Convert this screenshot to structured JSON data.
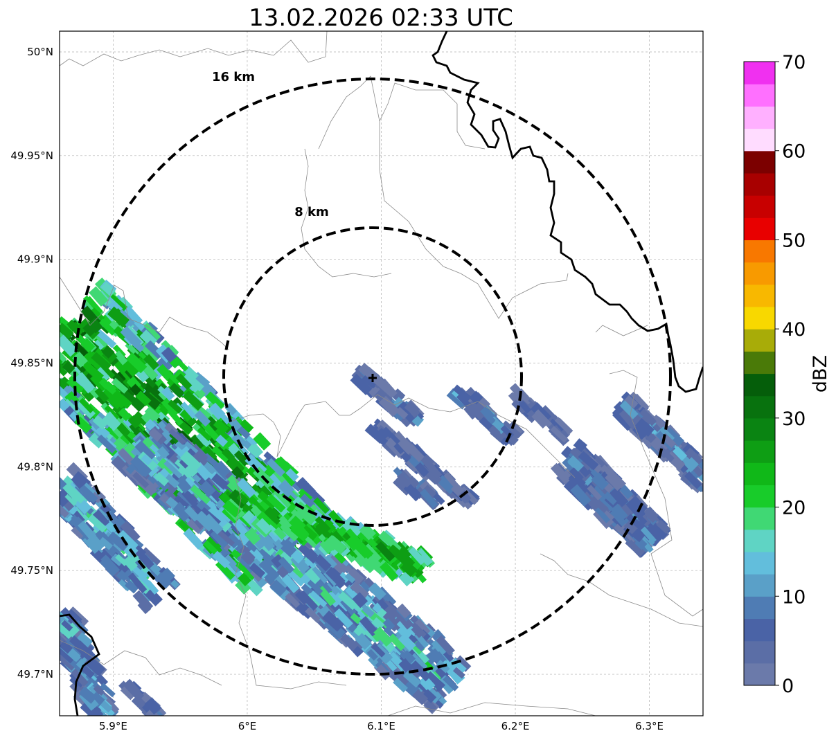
{
  "title": "13.02.2026 02:33 UTC",
  "map": {
    "lon_range": [
      5.86,
      6.34
    ],
    "lat_range": [
      49.68,
      50.01
    ],
    "lon_ticks": [
      {
        "value": 5.9,
        "label": "5.9°E"
      },
      {
        "value": 6.0,
        "label": "6°E"
      },
      {
        "value": 6.1,
        "label": "6.1°E"
      },
      {
        "value": 6.2,
        "label": "6.2°E"
      },
      {
        "value": 6.3,
        "label": "6.3°E"
      }
    ],
    "lat_ticks": [
      {
        "value": 50.0,
        "label": "50°N"
      },
      {
        "value": 49.95,
        "label": "49.95°N"
      },
      {
        "value": 49.9,
        "label": "49.9°N"
      },
      {
        "value": 49.85,
        "label": "49.85°N"
      },
      {
        "value": 49.8,
        "label": "49.8°N"
      },
      {
        "value": 49.75,
        "label": "49.75°N"
      },
      {
        "value": 49.7,
        "label": "49.7°N"
      }
    ],
    "radar_site": {
      "lon": 6.094,
      "lat": 49.843
    },
    "range_rings": [
      {
        "label": "8 km",
        "radius_km": 8
      },
      {
        "label": "16 km",
        "radius_km": 16
      }
    ],
    "colors": {
      "grid": "#b0b0b0",
      "minor_border": "#8a8a8a",
      "major_border": "#000000",
      "ring": "#000000"
    }
  },
  "colorbar": {
    "label": "dBZ",
    "ticks": [
      "0",
      "10",
      "20",
      "30",
      "40",
      "50",
      "60",
      "70"
    ],
    "min": 0,
    "max": 70,
    "levels": [
      "#6b7aaa",
      "#5b6ea6",
      "#4a63a6",
      "#4f7cb4",
      "#5aa0c8",
      "#62bedc",
      "#5fd4c4",
      "#40d874",
      "#18cc2a",
      "#10b818",
      "#0e9e14",
      "#0a8412",
      "#08720e",
      "#055e0a",
      "#4a7a08",
      "#a8ac08",
      "#f8d800",
      "#f8b800",
      "#f89a00",
      "#f87800",
      "#e80000",
      "#c80000",
      "#a80000",
      "#7c0000",
      "#ffdcff",
      "#ffb0ff",
      "#ff70ff",
      "#f030f0"
    ]
  }
}
